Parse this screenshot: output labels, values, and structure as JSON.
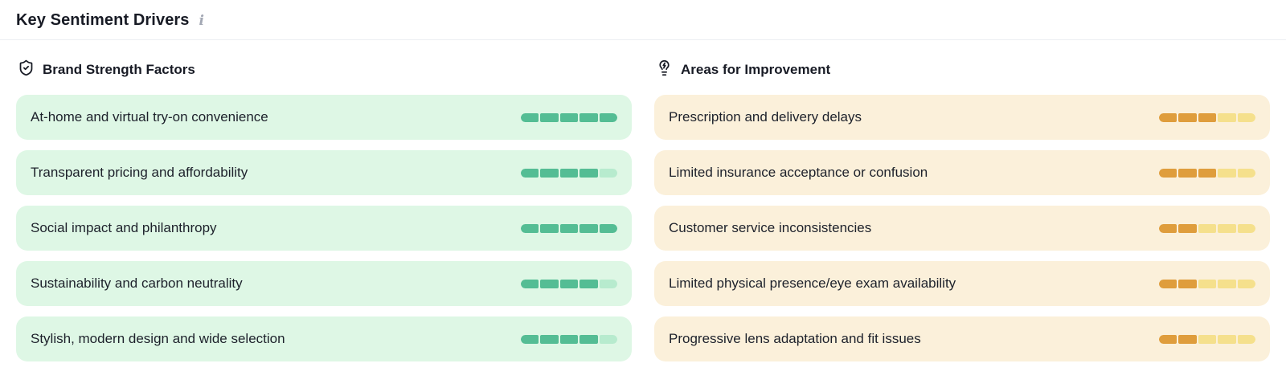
{
  "header": {
    "title": "Key Sentiment Drivers"
  },
  "colors": {
    "positive_bg": "#def7e5",
    "positive_fill": "#54bd94",
    "positive_empty": "#b7ebce",
    "negative_bg": "#fbf0da",
    "negative_fill": "#df9d3c",
    "negative_empty": "#f5e08c"
  },
  "sections": [
    {
      "title": "Brand Strength Factors",
      "icon": "shield-check-icon",
      "theme": "green",
      "items": [
        {
          "label": "At-home and virtual try-on convenience",
          "filled_segments": 5,
          "total_segments": 5
        },
        {
          "label": "Transparent pricing and affordability",
          "filled_segments": 4,
          "total_segments": 5
        },
        {
          "label": "Social impact and philanthropy",
          "filled_segments": 5,
          "total_segments": 5
        },
        {
          "label": "Sustainability and carbon neutrality",
          "filled_segments": 4,
          "total_segments": 5
        },
        {
          "label": "Stylish, modern design and wide selection",
          "filled_segments": 4,
          "total_segments": 5
        }
      ]
    },
    {
      "title": "Areas for Improvement",
      "icon": "lightbulb-zap-icon",
      "theme": "amber",
      "items": [
        {
          "label": "Prescription and delivery delays",
          "filled_segments": 3,
          "total_segments": 5
        },
        {
          "label": "Limited insurance acceptance or confusion",
          "filled_segments": 3,
          "total_segments": 5
        },
        {
          "label": "Customer service inconsistencies",
          "filled_segments": 2,
          "total_segments": 5
        },
        {
          "label": "Limited physical presence/eye exam availability",
          "filled_segments": 2,
          "total_segments": 5
        },
        {
          "label": "Progressive lens adaptation and fit issues",
          "filled_segments": 2,
          "total_segments": 5
        }
      ]
    }
  ]
}
